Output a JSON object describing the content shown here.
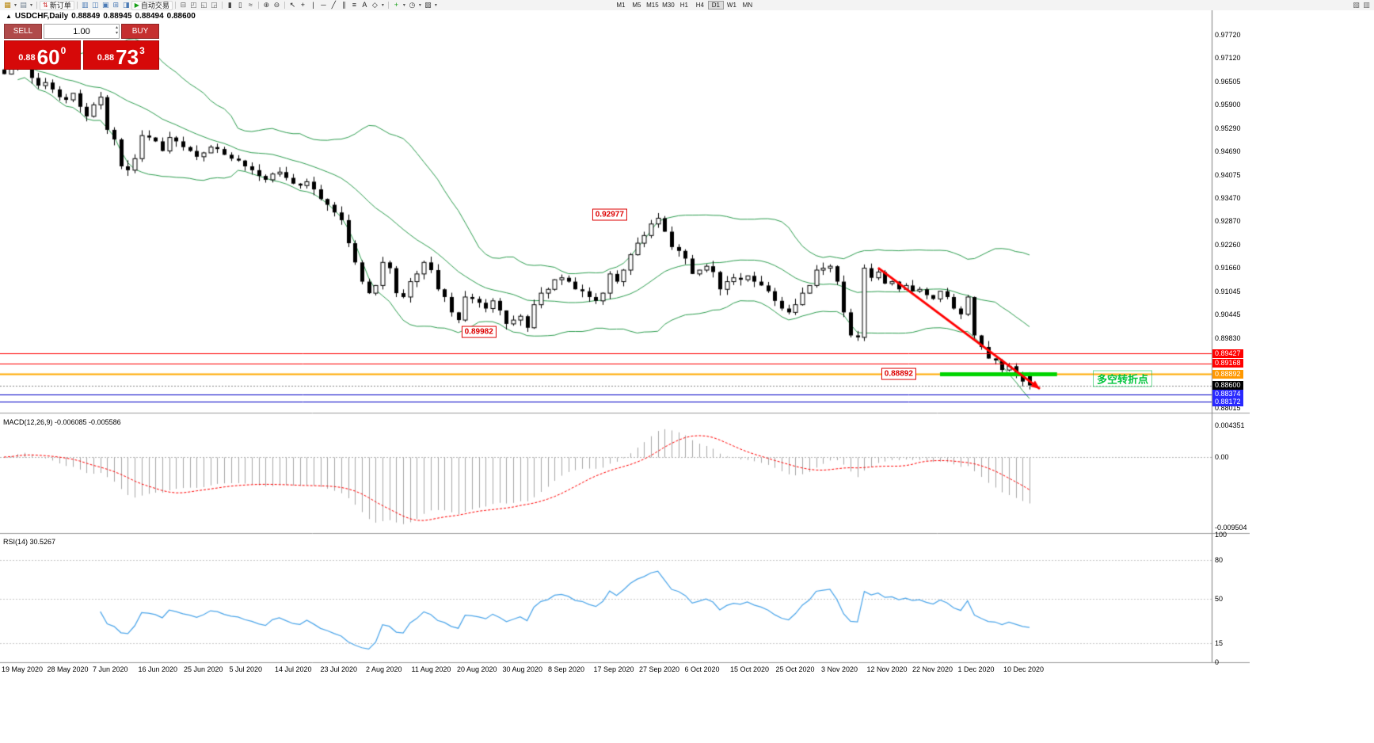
{
  "toolbar": {
    "caret_glyph": "▾",
    "items": [
      {
        "type": "icon",
        "name": "new-chart-icon",
        "glyph": "▦",
        "color": "#b8860b"
      },
      {
        "type": "caret",
        "name": "new-chart-caret"
      },
      {
        "type": "icon",
        "name": "profiles-icon",
        "glyph": "▤",
        "color": "#708090"
      },
      {
        "type": "caret",
        "name": "profiles-caret"
      },
      {
        "type": "sep"
      },
      {
        "type": "button",
        "name": "new-order-button",
        "label": "新订单",
        "icon": "⇅",
        "icon_color": "#cc2020"
      },
      {
        "type": "sep"
      },
      {
        "type": "icon",
        "name": "market-watch-icon",
        "glyph": "▥",
        "color": "#4a7ab5"
      },
      {
        "type": "icon",
        "name": "data-window-icon",
        "glyph": "◫",
        "color": "#4a7ab5"
      },
      {
        "type": "icon",
        "name": "navigator-icon",
        "glyph": "▣",
        "color": "#4a7ab5"
      },
      {
        "type": "icon",
        "name": "terminal-icon",
        "glyph": "⊞",
        "color": "#4a7ab5"
      },
      {
        "type": "icon",
        "name": "strategy-tester-icon",
        "glyph": "◨",
        "color": "#4a7ab5"
      },
      {
        "type": "button",
        "name": "autotrading-button",
        "label": "自动交易",
        "icon": "▶",
        "icon_color": "#18a018"
      },
      {
        "type": "sep"
      },
      {
        "type": "icon",
        "name": "new-window-icon",
        "glyph": "⊟",
        "color": "#666666"
      },
      {
        "type": "icon",
        "name": "cascade-windows-icon",
        "glyph": "◰",
        "color": "#666666"
      },
      {
        "type": "icon",
        "name": "tile-horizontal-icon",
        "glyph": "◱",
        "color": "#666666"
      },
      {
        "type": "icon",
        "name": "tile-vertical-icon",
        "glyph": "◲",
        "color": "#666666"
      },
      {
        "type": "sep"
      },
      {
        "type": "icon",
        "name": "bar-chart-icon",
        "glyph": "▮",
        "color": "#444444"
      },
      {
        "type": "icon",
        "name": "candlestick-chart-icon",
        "glyph": "▯",
        "color": "#444444"
      },
      {
        "type": "icon",
        "name": "line-chart-icon",
        "glyph": "≈",
        "color": "#444444"
      },
      {
        "type": "sep"
      },
      {
        "type": "icon",
        "name": "zoom-in-icon",
        "glyph": "⊕",
        "color": "#444444"
      },
      {
        "type": "icon",
        "name": "zoom-out-icon",
        "glyph": "⊖",
        "color": "#444444"
      },
      {
        "type": "sep"
      },
      {
        "type": "icon",
        "name": "cursor-icon",
        "glyph": "↖",
        "color": "#222222"
      },
      {
        "type": "icon",
        "name": "crosshair-icon",
        "glyph": "+",
        "color": "#222222"
      },
      {
        "type": "icon",
        "name": "vertical-line-icon",
        "glyph": "|",
        "color": "#222222"
      },
      {
        "type": "icon",
        "name": "horizontal-line-icon",
        "glyph": "─",
        "color": "#222222"
      },
      {
        "type": "icon",
        "name": "trendline-icon",
        "glyph": "╱",
        "color": "#222222"
      },
      {
        "type": "icon",
        "name": "channel-icon",
        "glyph": "∥",
        "color": "#222222"
      },
      {
        "type": "icon",
        "name": "fibonacci-icon",
        "glyph": "≡",
        "color": "#222222"
      },
      {
        "type": "icon",
        "name": "text-tool-icon",
        "glyph": "A",
        "color": "#222222"
      },
      {
        "type": "icon",
        "name": "arrows-tool-icon",
        "glyph": "◇",
        "color": "#222222"
      },
      {
        "type": "caret",
        "name": "objects-caret"
      },
      {
        "type": "sep"
      },
      {
        "type": "icon",
        "name": "indicators-icon",
        "glyph": "+",
        "color": "#18a018"
      },
      {
        "type": "caret",
        "name": "indicators-caret"
      },
      {
        "type": "icon",
        "name": "periods-icon",
        "glyph": "◷",
        "color": "#444444"
      },
      {
        "type": "caret",
        "name": "periods-caret"
      },
      {
        "type": "icon",
        "name": "templates-icon",
        "glyph": "▨",
        "color": "#444444"
      },
      {
        "type": "caret",
        "name": "templates-caret"
      }
    ],
    "timeframes": [
      "M1",
      "M5",
      "M15",
      "M30",
      "H1",
      "H4",
      "D1",
      "W1",
      "MN"
    ],
    "active_timeframe": "D1",
    "right_icons": [
      {
        "name": "docking-icon",
        "glyph": "▧",
        "color": "#666666"
      },
      {
        "name": "fullscreen-icon",
        "glyph": "▥",
        "color": "#666666"
      }
    ]
  },
  "chart_header": {
    "collapse_note": "one-click panel collapse arrow",
    "symbol": "USDCHF,Daily",
    "open": "0.88849",
    "high": "0.88945",
    "low": "0.88494",
    "close": "0.88600"
  },
  "trade_panel": {
    "collapse_icon": "▲",
    "sell_label": "SELL",
    "buy_label": "BUY",
    "lot": "1.00",
    "lot_spinner_up": "▴",
    "lot_spinner_down": "▾",
    "sell_price": {
      "prefix": "0.88",
      "big": "60",
      "sup": "0"
    },
    "buy_price": {
      "prefix": "0.88",
      "big": "73",
      "sup": "3"
    }
  },
  "macd": {
    "label": "MACD(12,26,9) -0.006085 -0.005586",
    "axis": [
      "0.004351",
      "0.00",
      "-0.009504"
    ],
    "ylim": [
      -0.0103,
      0.0058
    ]
  },
  "rsi": {
    "label": "RSI(14) 30.5267",
    "axis": [
      "100",
      "80",
      "50",
      "15",
      "0"
    ],
    "levels": [
      80,
      50,
      15
    ]
  },
  "chart_data": {
    "type": "candlestick",
    "symbol": "USDCHF",
    "timeframe": "Daily",
    "indicators": [
      "Bollinger Bands (20,2)",
      "MACD(12,26,9)",
      "RSI(14)"
    ],
    "price_top": 0.9836,
    "price_bottom": 0.8789,
    "closes": [
      0.967,
      0.9685,
      0.971,
      0.9702,
      0.966,
      0.964,
      0.9648,
      0.963,
      0.961,
      0.9603,
      0.962,
      0.9585,
      0.956,
      0.959,
      0.961,
      0.9525,
      0.95,
      0.943,
      0.942,
      0.945,
      0.951,
      0.9505,
      0.9495,
      0.947,
      0.9505,
      0.9495,
      0.948,
      0.947,
      0.9455,
      0.9465,
      0.948,
      0.9475,
      0.946,
      0.945,
      0.9445,
      0.943,
      0.942,
      0.9405,
      0.9395,
      0.941,
      0.9415,
      0.94,
      0.9385,
      0.938,
      0.939,
      0.937,
      0.9345,
      0.933,
      0.931,
      0.929,
      0.923,
      0.918,
      0.913,
      0.91,
      0.912,
      0.918,
      0.9165,
      0.91,
      0.909,
      0.913,
      0.915,
      0.918,
      0.916,
      0.911,
      0.909,
      0.905,
      0.903,
      0.909,
      0.9085,
      0.9075,
      0.906,
      0.908,
      0.9055,
      0.902,
      0.903,
      0.904,
      0.901,
      0.907,
      0.91,
      0.911,
      0.9135,
      0.914,
      0.913,
      0.911,
      0.9105,
      0.909,
      0.908,
      0.91,
      0.915,
      0.913,
      0.916,
      0.92,
      0.923,
      0.925,
      0.928,
      0.9295,
      0.926,
      0.922,
      0.921,
      0.919,
      0.915,
      0.916,
      0.917,
      0.9155,
      0.911,
      0.913,
      0.914,
      0.9135,
      0.9145,
      0.913,
      0.912,
      0.9105,
      0.908,
      0.906,
      0.905,
      0.907,
      0.91,
      0.912,
      0.916,
      0.9165,
      0.917,
      0.913,
      0.905,
      0.899,
      0.8985,
      0.9165,
      0.914,
      0.9155,
      0.9125,
      0.913,
      0.911,
      0.912,
      0.9105,
      0.911,
      0.9095,
      0.9085,
      0.9105,
      0.909,
      0.906,
      0.9045,
      0.909,
      0.899,
      0.896,
      0.893,
      0.8925,
      0.89,
      0.891,
      0.889,
      0.887,
      0.886
    ],
    "last_ohlc": {
      "open": 0.88849,
      "high": 0.88945,
      "low": 0.88494,
      "close": 0.886
    },
    "y_axis_ticks": [
      "0.97720",
      "0.97120",
      "0.96505",
      "0.95900",
      "0.95290",
      "0.94690",
      "0.94075",
      "0.93470",
      "0.92870",
      "0.92260",
      "0.91660",
      "0.91045",
      "0.90445",
      "0.89830",
      "0.88015"
    ],
    "hlines": [
      {
        "price": 0.89427,
        "label": "0.89427",
        "line_color": "#ff0000",
        "label_bg": "#ff0000",
        "width": 1
      },
      {
        "price": 0.89168,
        "label": "0.89168",
        "line_color": "#ff0000",
        "label_bg": "#ff0000",
        "width": 1
      },
      {
        "price": 0.88892,
        "label": "0.88892",
        "line_color": "#ffaa00",
        "label_bg": "#ff9800",
        "width": 2
      },
      {
        "price": 0.88374,
        "label": "0.88374",
        "line_color": "#0000c8",
        "label_bg": "#2929ff",
        "width": 1
      },
      {
        "price": 0.88172,
        "label": "0.88172",
        "line_color": "#0000c8",
        "label_bg": "#2929ff",
        "width": 1
      }
    ],
    "current_price": {
      "label": "0.88600",
      "price": 0.886,
      "label_bg": "#000000"
    },
    "green_segment": {
      "price": 0.88892,
      "from_index": 136,
      "to_index": 153,
      "color": "#00d400",
      "width": 5
    },
    "trend_arrow": {
      "from_index": 127,
      "from_price": 0.9166,
      "to_index": 150.5,
      "to_price": 0.8851,
      "color": "#ff0000",
      "width": 3
    },
    "callouts": [
      {
        "text": "0.92977",
        "index": 88,
        "price": 0.9305
      },
      {
        "text": "0.89982",
        "index": 69,
        "price": 0.89982
      },
      {
        "text": "0.88892",
        "index": 130,
        "price": 0.88892
      }
    ],
    "annotation": {
      "text": "多空转折点",
      "color": "#00c53c",
      "x": 1380,
      "price": 0.8878
    },
    "x_axis_dates": [
      "19 May 2020",
      "28 May 2020",
      "7 Jun 2020",
      "16 Jun 2020",
      "25 Jun 2020",
      "5 Jul 2020",
      "14 Jul 2020",
      "23 Jul 2020",
      "2 Aug 2020",
      "11 Aug 2020",
      "20 Aug 2020",
      "30 Aug 2020",
      "8 Sep 2020",
      "17 Sep 2020",
      "27 Sep 2020",
      "6 Oct 2020",
      "15 Oct 2020",
      "25 Oct 2020",
      "3 Nov 2020",
      "12 Nov 2020",
      "22 Nov 2020",
      "1 Dec 2020",
      "10 Dec 2020"
    ],
    "colors": {
      "bollinger": "#2e9e50",
      "candle": "#000000",
      "candle_up_fill": "#ffffff",
      "macd_bars": "#a6a6a6",
      "macd_signal": "#ff0000",
      "rsi_line": "#4da6ea",
      "grid_levels": "#c8c8c8",
      "divider": "#9e9e9e",
      "axis_line": "#808080"
    }
  }
}
